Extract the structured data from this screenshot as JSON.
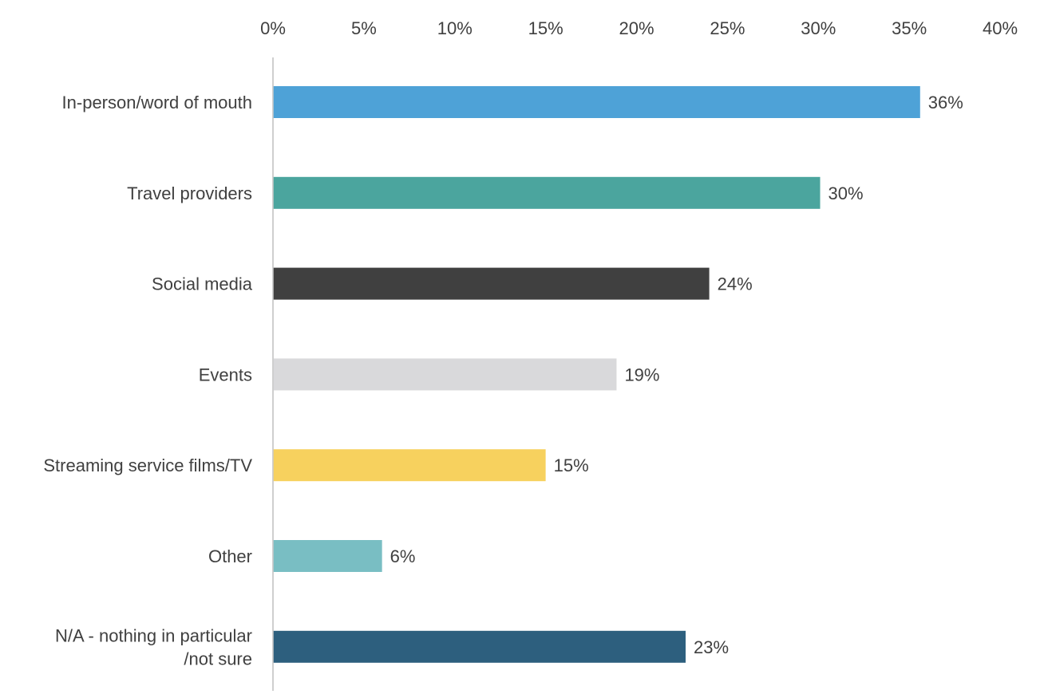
{
  "chart_data": {
    "type": "bar",
    "orientation": "horizontal",
    "title": "",
    "xlabel": "",
    "ylabel": "",
    "xlim": [
      0,
      40
    ],
    "x_tick_values": [
      0,
      5,
      10,
      15,
      20,
      25,
      30,
      35,
      40
    ],
    "x_tick_labels": [
      "0%",
      "5%",
      "10%",
      "15%",
      "20%",
      "25%",
      "30%",
      "35%",
      "40%"
    ],
    "x_axis_position": "top",
    "grid": false,
    "legend": "none",
    "categories": [
      [
        "In-person/word of mouth"
      ],
      [
        "Travel providers"
      ],
      [
        "Social media"
      ],
      [
        "Events"
      ],
      [
        "Streaming service films/TV"
      ],
      [
        "Other"
      ],
      [
        "N/A - nothing in particular",
        "/not sure"
      ]
    ],
    "values": [
      35.6,
      30.1,
      24.0,
      18.9,
      15.0,
      6.0,
      22.7
    ],
    "value_labels": [
      "36%",
      "30%",
      "24%",
      "19%",
      "15%",
      "6%",
      "23%"
    ],
    "colors": [
      "#4EA2D7",
      "#4BA59E",
      "#404040",
      "#D9D9DB",
      "#F7D15E",
      "#79BEC3",
      "#2D5F7E"
    ],
    "axis_line_color": "#BFBFBF",
    "text_color": "#404040"
  }
}
